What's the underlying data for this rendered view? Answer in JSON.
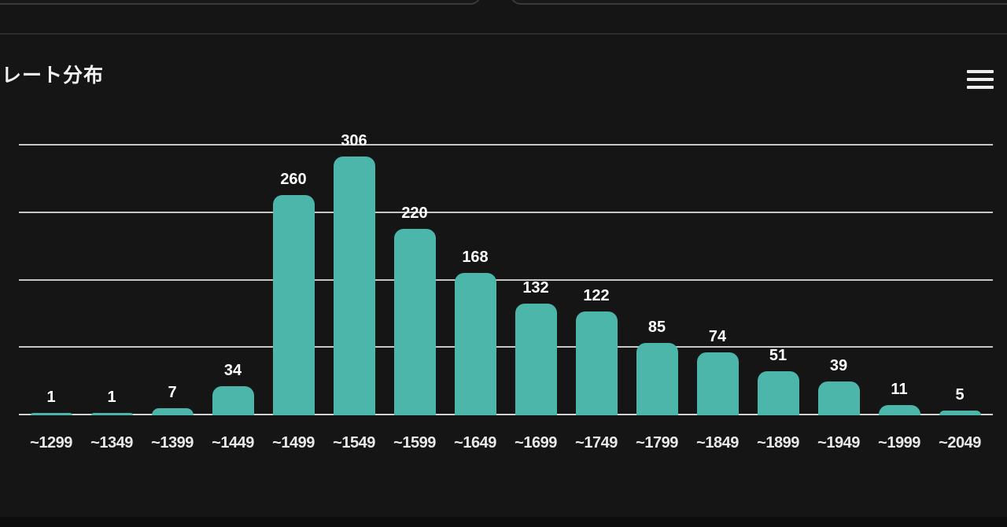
{
  "header": {
    "title": "レート分布",
    "menu_icon": "hamburger-menu-icon"
  },
  "colors": {
    "background": "#151515",
    "bar": "#4cb6ab",
    "gridline": "#c6c6c6",
    "axis_line": "#d2d2d2",
    "value_label": "#ffffff",
    "axis_label": "#e9e9e9",
    "title": "#f2f2f2",
    "top_divider": "#2b2b2b",
    "card_border": "#3a3a3a"
  },
  "chart_data": {
    "type": "bar",
    "title": "レート分布",
    "categories": [
      "~1299",
      "~1349",
      "~1399",
      "~1449",
      "~1499",
      "~1549",
      "~1599",
      "~1649",
      "~1699",
      "~1749",
      "~1799",
      "~1849",
      "~1899",
      "~1949",
      "~1999",
      "~2049"
    ],
    "values": [
      1,
      1,
      7,
      34,
      260,
      306,
      220,
      168,
      132,
      122,
      85,
      74,
      51,
      39,
      11,
      5
    ],
    "xlabel": "",
    "ylabel": "",
    "ylim": [
      0,
      320
    ],
    "gridlines": [
      80,
      160,
      240,
      320
    ],
    "y_tick_labels_visible": false,
    "grid": "horizontal",
    "legend_position": "none",
    "value_labels_position": "above-bars",
    "bar_color": "#4cb6ab"
  }
}
